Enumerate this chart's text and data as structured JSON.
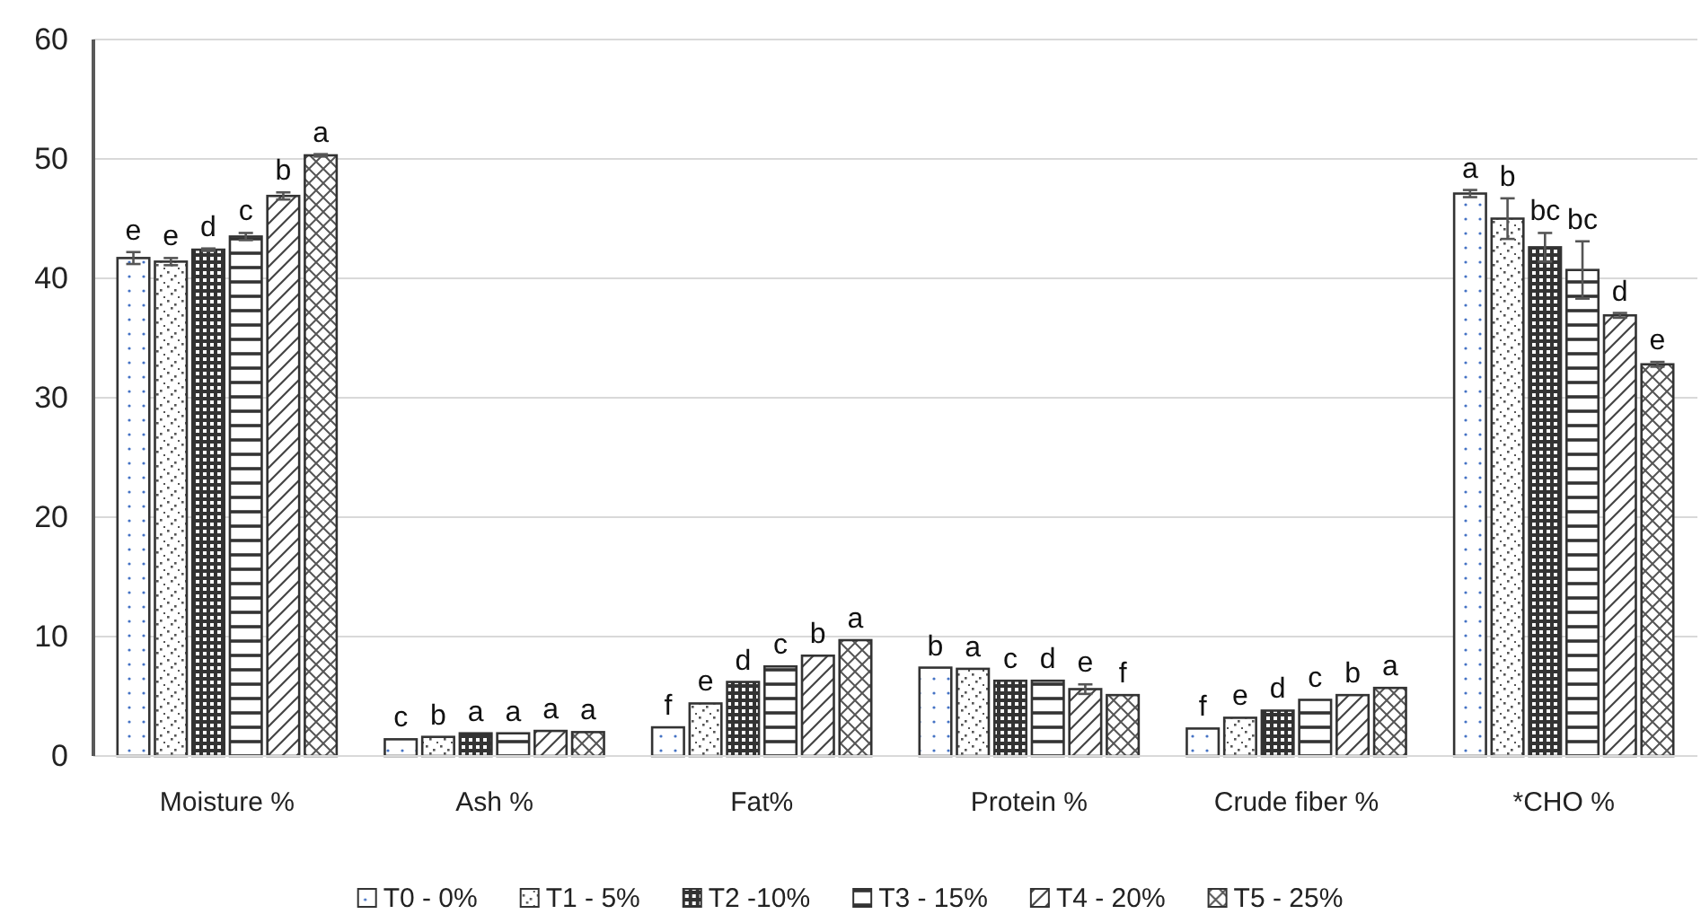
{
  "chart_data": {
    "type": "bar",
    "categories": [
      "Moisture %",
      "Ash %",
      "Fat%",
      "Protein %",
      "Crude fiber %",
      "*CHO %"
    ],
    "series": [
      {
        "name": "T0 - 0%",
        "color": "#333333",
        "values": [
          41.7,
          1.4,
          2.4,
          7.4,
          2.3,
          47.1
        ],
        "errors": [
          0.5,
          null,
          null,
          null,
          null,
          0.3
        ]
      },
      {
        "name": "T1 - 5%",
        "color": "#333333",
        "values": [
          41.4,
          1.6,
          4.4,
          7.3,
          3.2,
          45.0
        ],
        "errors": [
          0.3,
          null,
          null,
          null,
          null,
          1.7
        ]
      },
      {
        "name": "T2 -10%",
        "color": "#333333",
        "values": [
          42.4,
          1.9,
          6.2,
          6.3,
          3.8,
          42.6
        ],
        "errors": [
          0.1,
          null,
          null,
          null,
          null,
          1.2
        ]
      },
      {
        "name": "T3 - 15%",
        "color": "#333333",
        "values": [
          43.5,
          1.9,
          7.5,
          6.3,
          4.7,
          40.7
        ],
        "errors": [
          0.3,
          null,
          null,
          null,
          null,
          2.4
        ]
      },
      {
        "name": "T4 - 20%",
        "color": "#333333",
        "values": [
          46.9,
          2.1,
          8.4,
          5.6,
          5.1,
          36.9
        ],
        "errors": [
          0.3,
          null,
          null,
          0.4,
          null,
          0.2
        ]
      },
      {
        "name": "T5 - 25%",
        "color": "#333333",
        "values": [
          50.3,
          2.0,
          9.7,
          5.1,
          5.7,
          32.8
        ],
        "errors": [
          0.1,
          null,
          null,
          null,
          null,
          0.2
        ]
      }
    ],
    "annotations": [
      "e",
      "e",
      "d",
      "c",
      "b",
      "a",
      "c",
      "b",
      "a",
      "a",
      "a",
      "a",
      "f",
      "e",
      "d",
      "c",
      "b",
      "a",
      "b",
      "a",
      "c",
      "d",
      "e",
      "f",
      "f",
      "e",
      "d",
      "c",
      "b",
      "a",
      "a",
      "b",
      "bc",
      "bc",
      "d",
      "e"
    ],
    "ylim": [
      0,
      60
    ],
    "yticks": [
      0,
      10,
      20,
      30,
      40,
      50,
      60
    ],
    "grid": "y",
    "legend": "bottom"
  }
}
